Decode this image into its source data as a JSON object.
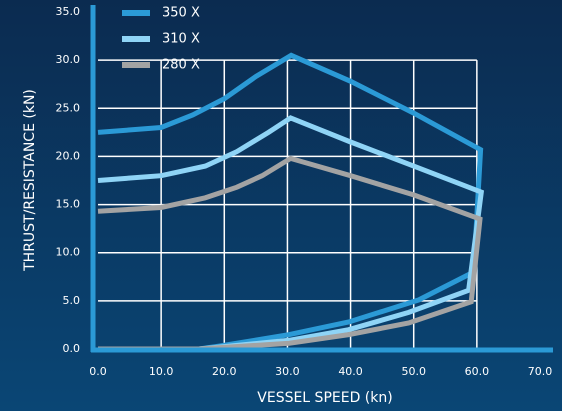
{
  "chart_data": {
    "type": "line",
    "x_label": "VESSEL SPEED (kn)",
    "y_label": "THRUST/RESISTANCE (kN)",
    "xlim": [
      0,
      70
    ],
    "ylim": [
      0,
      35
    ],
    "xticks": [
      {
        "value": 0,
        "label": "0.0"
      },
      {
        "value": 10,
        "label": "10.0"
      },
      {
        "value": 20,
        "label": "20.0"
      },
      {
        "value": 30,
        "label": "30.0"
      },
      {
        "value": 40,
        "label": "40.0"
      },
      {
        "value": 50,
        "label": "50.0"
      },
      {
        "value": 60,
        "label": "60.0"
      },
      {
        "value": 70,
        "label": "70.0"
      }
    ],
    "yticks": [
      {
        "value": 0,
        "label": "0.0"
      },
      {
        "value": 5,
        "label": "5.0"
      },
      {
        "value": 10,
        "label": "10.0"
      },
      {
        "value": 15,
        "label": "15.0"
      },
      {
        "value": 20,
        "label": "20.0"
      },
      {
        "value": 25,
        "label": "25.0"
      },
      {
        "value": 30,
        "label": "30.0"
      },
      {
        "value": 35,
        "label": "35.0"
      }
    ],
    "grid": true,
    "legend": "top-left",
    "series": [
      {
        "name": "350 X",
        "color": "#2b9ad6",
        "x": [
          0,
          10,
          15,
          20,
          25,
          30.6,
          40,
          50,
          60.6,
          59.5,
          50.8,
          39.7,
          30.3,
          19.2,
          16,
          0
        ],
        "values": [
          22.5,
          23,
          24.3,
          26,
          28.3,
          30.5,
          27.8,
          24.5,
          20.7,
          8,
          5.1,
          2.8,
          1.5,
          0.3,
          0,
          0
        ]
      },
      {
        "name": "310 X",
        "color": "#8fd4f6",
        "x": [
          0,
          10,
          17,
          22,
          27,
          30.5,
          40,
          50,
          60.7,
          58.7,
          49.2,
          39.7,
          30.3,
          19.2,
          16,
          0
        ],
        "values": [
          17.5,
          18,
          19,
          20.5,
          22.5,
          24,
          21.5,
          19,
          16.3,
          6.1,
          3.8,
          2,
          0.9,
          0.2,
          0,
          0
        ]
      },
      {
        "name": "280 X",
        "color": "#a3a3a3",
        "x": [
          0,
          10,
          17,
          22,
          26,
          30.5,
          40,
          50,
          60.5,
          59.1,
          49.2,
          39.7,
          30.3,
          16,
          0
        ],
        "values": [
          14.3,
          14.7,
          15.7,
          16.8,
          18,
          19.8,
          18,
          16,
          13.5,
          4.9,
          2.7,
          1.5,
          0.6,
          0,
          0
        ]
      }
    ]
  }
}
